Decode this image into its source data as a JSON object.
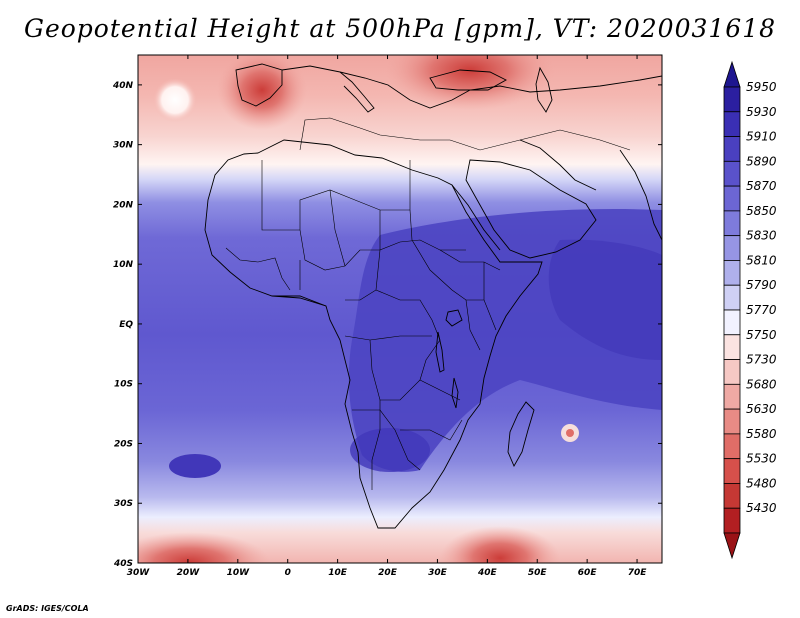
{
  "title": "Geopotential Height at 500hPa [gpm], VT: 2020031618",
  "credit": "GrADS: IGES/COLA",
  "map": {
    "projection": "latlon",
    "lon_range": [
      -30,
      75
    ],
    "lat_range": [
      -40,
      45
    ],
    "lon_ticks": [
      {
        "value": -30,
        "label": "30W"
      },
      {
        "value": -20,
        "label": "20W"
      },
      {
        "value": -10,
        "label": "10W"
      },
      {
        "value": 0,
        "label": "0"
      },
      {
        "value": 10,
        "label": "10E"
      },
      {
        "value": 20,
        "label": "20E"
      },
      {
        "value": 30,
        "label": "30E"
      },
      {
        "value": 40,
        "label": "40E"
      },
      {
        "value": 50,
        "label": "50E"
      },
      {
        "value": 60,
        "label": "60E"
      },
      {
        "value": 70,
        "label": "70E"
      }
    ],
    "lat_ticks": [
      {
        "value": 40,
        "label": "40N"
      },
      {
        "value": 30,
        "label": "30N"
      },
      {
        "value": 20,
        "label": "20N"
      },
      {
        "value": 10,
        "label": "10N"
      },
      {
        "value": 0,
        "label": "EQ"
      },
      {
        "value": -10,
        "label": "10S"
      },
      {
        "value": -20,
        "label": "20S"
      },
      {
        "value": -30,
        "label": "30S"
      },
      {
        "value": -40,
        "label": "40S"
      }
    ]
  },
  "colorbar": {
    "levels": [
      {
        "label": "5950",
        "color": "#2b1fa0"
      },
      {
        "label": "5930",
        "color": "#3a2fb4"
      },
      {
        "label": "5910",
        "color": "#4a40c0"
      },
      {
        "label": "5890",
        "color": "#5a52cb"
      },
      {
        "label": "5870",
        "color": "#6c66d4"
      },
      {
        "label": "5850",
        "color": "#7e7bdc"
      },
      {
        "label": "5830",
        "color": "#9695e4"
      },
      {
        "label": "5810",
        "color": "#afb0ec"
      },
      {
        "label": "5790",
        "color": "#cfd0f5"
      },
      {
        "label": "5770",
        "color": "#f2f2ff"
      },
      {
        "label": "5750",
        "color": "#fbe3e1"
      },
      {
        "label": "5730",
        "color": "#f6c8c4"
      },
      {
        "label": "5680",
        "color": "#efa9a4"
      },
      {
        "label": "5630",
        "color": "#e88b85"
      },
      {
        "label": "5580",
        "color": "#e06d67"
      },
      {
        "label": "5530",
        "color": "#d6504b"
      },
      {
        "label": "5480",
        "color": "#c53834"
      },
      {
        "label": "5430",
        "color": "#b21f22"
      }
    ],
    "over_color": "#1e1690",
    "under_color": "#9a1216"
  },
  "field_features": [
    {
      "name": "north-high-gradient-band",
      "value": 5770
    },
    {
      "name": "iberia-low",
      "value": 5530
    },
    {
      "name": "black-sea-low",
      "value": 5530
    },
    {
      "name": "south-atlantic-low",
      "value": 5580
    },
    {
      "name": "indian-ocean-low",
      "value": 5580
    },
    {
      "name": "namibia-high",
      "value": 5910
    },
    {
      "name": "mauritius-anomaly",
      "value": 5730
    }
  ]
}
